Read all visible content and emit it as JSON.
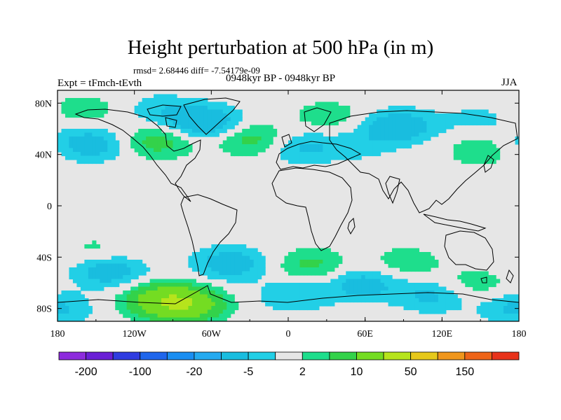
{
  "title": "Height perturbation at 500 hPa (in m)",
  "stats": "rmsd= 2.68446 diff= -7.54179e-09",
  "left_label": "Expt = tFmch-tEvth",
  "center_label": "0948kyr BP - 0948kyr BP",
  "right_label": "JJA",
  "chart_data": {
    "type": "heatmap",
    "projection": "cylindrical-equidistant",
    "title": "Height perturbation at 500 hPa (in m)",
    "units": "m",
    "variable": "500 hPa geopotential height difference",
    "x_range": [
      -180,
      180
    ],
    "y_range": [
      -90,
      90
    ],
    "x_ticks": [
      {
        "value": -180,
        "label": "180"
      },
      {
        "value": -120,
        "label": "120W"
      },
      {
        "value": -60,
        "label": "60W"
      },
      {
        "value": 0,
        "label": "0"
      },
      {
        "value": 60,
        "label": "60E"
      },
      {
        "value": 120,
        "label": "120E"
      },
      {
        "value": 180,
        "label": "180"
      }
    ],
    "y_ticks": [
      {
        "value": 80,
        "label": "80N"
      },
      {
        "value": 40,
        "label": "40N"
      },
      {
        "value": 0,
        "label": "0"
      },
      {
        "value": -40,
        "label": "40S"
      },
      {
        "value": -80,
        "label": "80S"
      }
    ],
    "levels": [
      -200,
      -150,
      -100,
      -50,
      -20,
      -10,
      -5,
      -2,
      2,
      5,
      10,
      20,
      50,
      100,
      150,
      200
    ],
    "colorbar_labels": [
      "-200",
      "-100",
      "-20",
      "-5",
      "2",
      "10",
      "50",
      "150"
    ],
    "colors": [
      "#8d2bdd",
      "#6a1fd6",
      "#2f3ce0",
      "#1f66ec",
      "#1a8ef2",
      "#25aaf0",
      "#19bddf",
      "#22cfe6",
      "#e6e6e6",
      "#1ede8c",
      "#33d24a",
      "#74dc22",
      "#b6e41c",
      "#e6c81a",
      "#f0961c",
      "#ee6418",
      "#e8321a"
    ],
    "anomalies": [
      {
        "lon": -160,
        "lat": 75,
        "value": 4
      },
      {
        "lon": -100,
        "lat": 75,
        "value": -4
      },
      {
        "lon": -65,
        "lat": 65,
        "value": -10
      },
      {
        "lon": -155,
        "lat": 48,
        "value": -8
      },
      {
        "lon": -102,
        "lat": 50,
        "value": 7
      },
      {
        "lon": -28,
        "lat": 52,
        "value": 7
      },
      {
        "lon": 10,
        "lat": 46,
        "value": -6
      },
      {
        "lon": 32,
        "lat": 70,
        "value": 4
      },
      {
        "lon": 86,
        "lat": 62,
        "value": -9
      },
      {
        "lon": 55,
        "lat": 47,
        "value": -3
      },
      {
        "lon": 150,
        "lat": 68,
        "value": -3
      },
      {
        "lon": 150,
        "lat": 43,
        "value": 4
      },
      {
        "lon": -150,
        "lat": -35,
        "value": 3
      },
      {
        "lon": -140,
        "lat": -51,
        "value": -8
      },
      {
        "lon": -100,
        "lat": -73,
        "value": 11
      },
      {
        "lon": -80,
        "lat": -77,
        "value": 16
      },
      {
        "lon": -45,
        "lat": -45,
        "value": -8
      },
      {
        "lon": 18,
        "lat": -46,
        "value": 6
      },
      {
        "lon": 5,
        "lat": -70,
        "value": -5
      },
      {
        "lon": 58,
        "lat": -61,
        "value": -7
      },
      {
        "lon": 92,
        "lat": -44,
        "value": 4
      },
      {
        "lon": 112,
        "lat": -70,
        "value": -6
      },
      {
        "lon": 145,
        "lat": -61,
        "value": 4
      },
      {
        "lon": 178,
        "lat": -80,
        "value": -6
      }
    ]
  }
}
